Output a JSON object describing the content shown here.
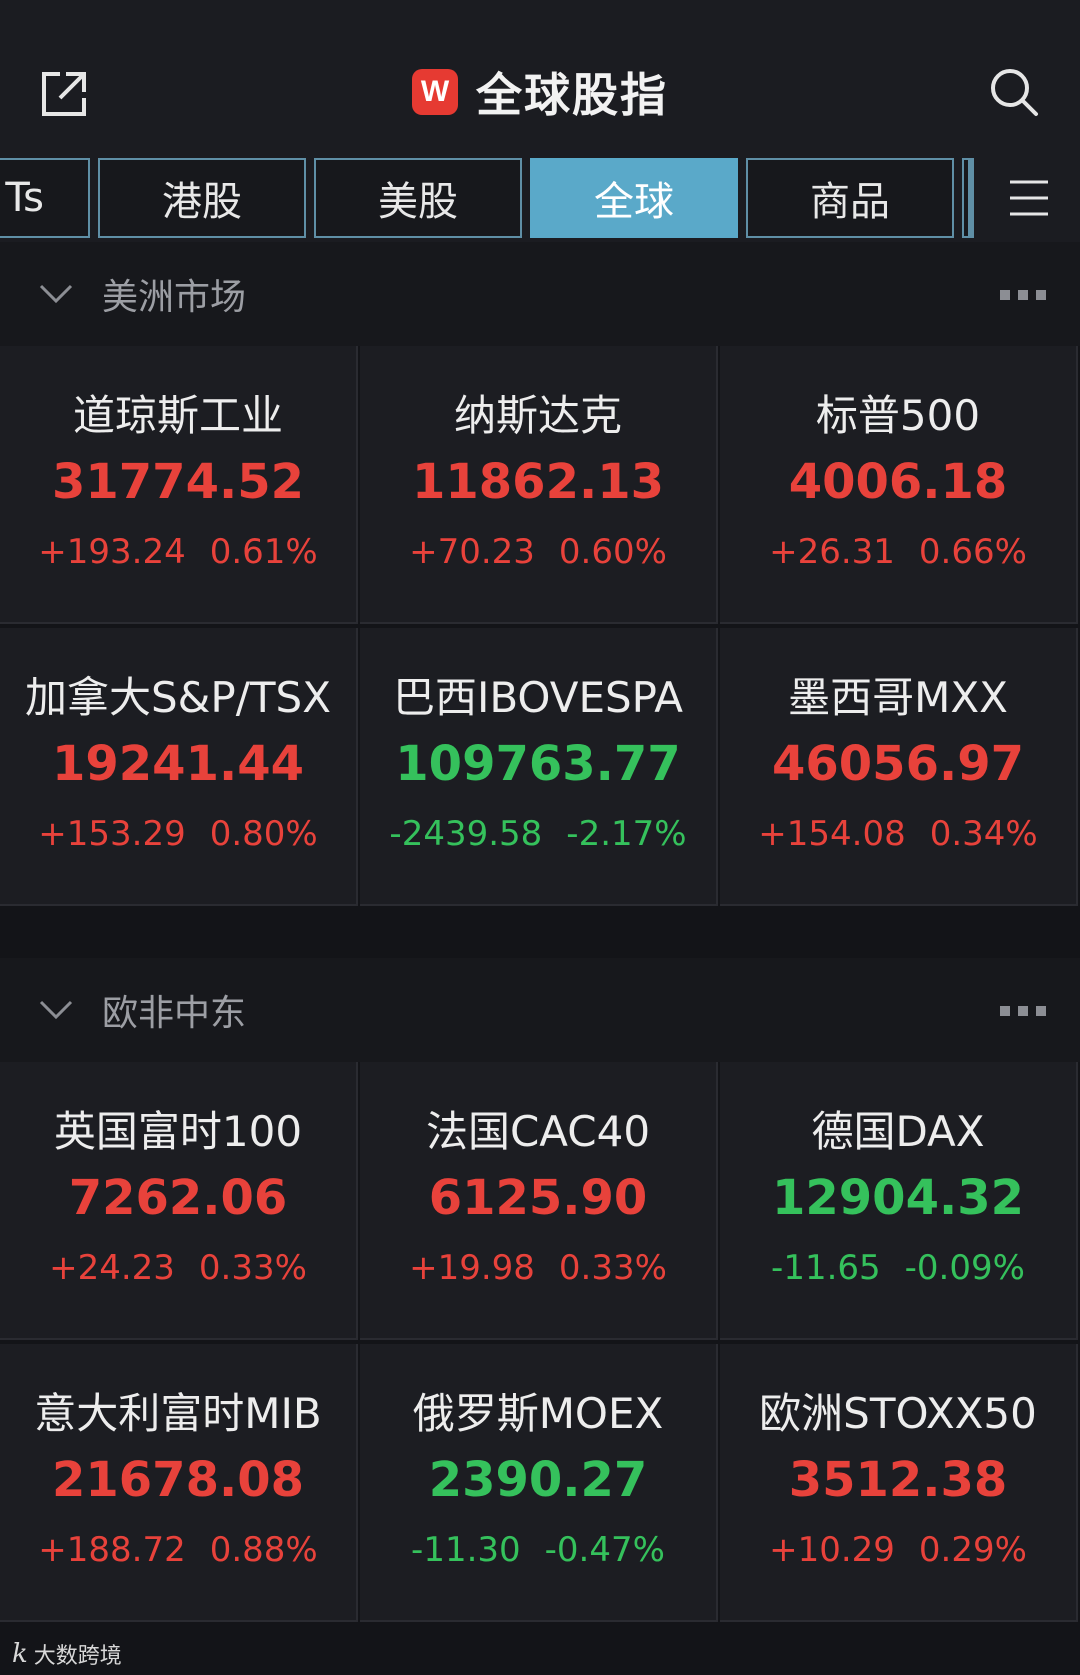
{
  "header": {
    "title": "全球股指",
    "logo_letter": "W",
    "accent": "#e63a32"
  },
  "tabs": [
    {
      "label": "Ts",
      "active": false
    },
    {
      "label": "港股",
      "active": false
    },
    {
      "label": "美股",
      "active": false
    },
    {
      "label": "全球",
      "active": true
    },
    {
      "label": "商品",
      "active": false
    }
  ],
  "sections": [
    {
      "title": "美洲市场",
      "indices": [
        {
          "name": "道琼斯工业",
          "price": "31774.52",
          "change": "+193.24",
          "percent": "0.61%",
          "trend": "up"
        },
        {
          "name": "纳斯达克",
          "price": "11862.13",
          "change": "+70.23",
          "percent": "0.60%",
          "trend": "up"
        },
        {
          "name": "标普500",
          "price": "4006.18",
          "change": "+26.31",
          "percent": "0.66%",
          "trend": "up"
        },
        {
          "name": "加拿大S&P/TSX",
          "price": "19241.44",
          "change": "+153.29",
          "percent": "0.80%",
          "trend": "up"
        },
        {
          "name": "巴西IBOVESPA",
          "price": "109763.77",
          "change": "-2439.58",
          "percent": "-2.17%",
          "trend": "down"
        },
        {
          "name": "墨西哥MXX",
          "price": "46056.97",
          "change": "+154.08",
          "percent": "0.34%",
          "trend": "up"
        }
      ]
    },
    {
      "title": "欧非中东",
      "indices": [
        {
          "name": "英国富时100",
          "price": "7262.06",
          "change": "+24.23",
          "percent": "0.33%",
          "trend": "up"
        },
        {
          "name": "法国CAC40",
          "price": "6125.90",
          "change": "+19.98",
          "percent": "0.33%",
          "trend": "up"
        },
        {
          "name": "德国DAX",
          "price": "12904.32",
          "change": "-11.65",
          "percent": "-0.09%",
          "trend": "down"
        },
        {
          "name": "意大利富时MIB",
          "price": "21678.08",
          "change": "+188.72",
          "percent": "0.88%",
          "trend": "up"
        },
        {
          "name": "俄罗斯MOEX",
          "price": "2390.27",
          "change": "-11.30",
          "percent": "-0.47%",
          "trend": "down"
        },
        {
          "name": "欧洲STOXX50",
          "price": "3512.38",
          "change": "+10.29",
          "percent": "0.29%",
          "trend": "up"
        }
      ]
    }
  ],
  "watermark": {
    "logo": "k",
    "text": "大数跨境"
  },
  "colors": {
    "up": "#e8423b",
    "down": "#35c15c",
    "active_tab": "#5aa9c9"
  },
  "icons": {
    "share": "share-external-icon",
    "search": "search-icon",
    "menu": "menu-icon",
    "chevron": "chevron-down-icon",
    "more": "more-dots-icon"
  }
}
